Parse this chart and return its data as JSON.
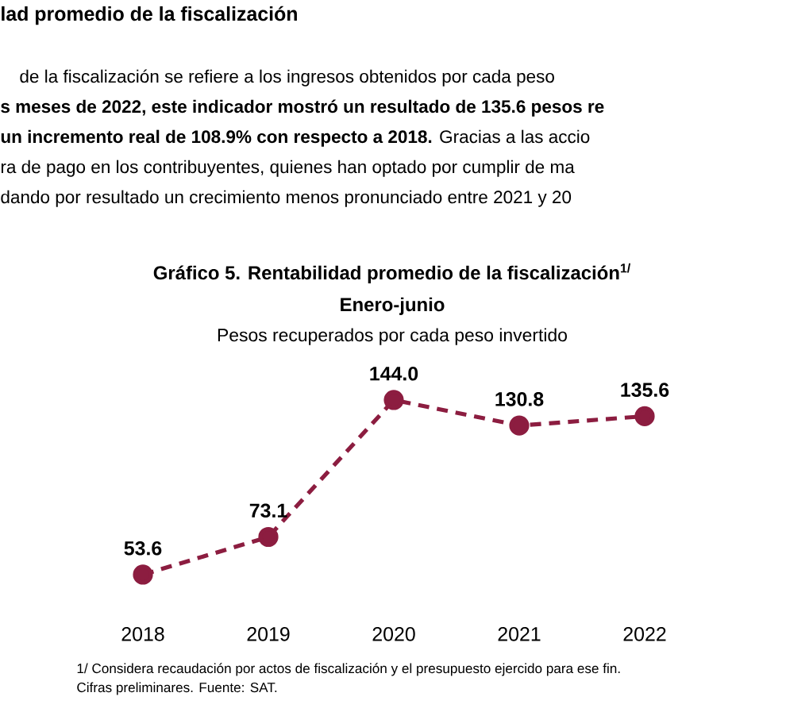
{
  "chart_data": {
    "type": "line",
    "title": "Gráfico 5. Rentabilidad promedio de la fiscalización$^{1/}$",
    "subtitle": "Enero-junio",
    "ylabel": "Pesos recuperados por cada peso invertido",
    "categories": [
      "2018",
      "2019",
      "2020",
      "2021",
      "2022"
    ],
    "series": [
      {
        "color": "#8c1d40",
        "values": [
          53.6,
          73.1,
          144.0,
          130.8,
          135.6
        ],
        "value_labels": [
          "53.6",
          "73.1",
          "144.0",
          "130.8",
          "135.6"
        ]
      }
    ],
    "marker": "circle",
    "line_style": "dashed",
    "annotations": [
      "lad promedio de la fiscalización",
      "de la fiscalización se refiere a los ingresos obtenidos por cada peso",
      "**s meses de 2022, este indicador mostró un resultado de 135.6 pesos re**",
      "**un incremento real de 108.9% con respecto a 2018.** Gracias a las accio",
      "ra de pago en los contribuyentes, quienes han optado por cumplir de ma",
      "dando por resultado un crecimiento menos pronunciado entre 2021 y 20",
      "1/ Considera recaudación por actos de fiscalización y el presupuesto ejercido para ese fin.",
      "Cifras preliminares. Fuente: SAT."
    ]
  }
}
